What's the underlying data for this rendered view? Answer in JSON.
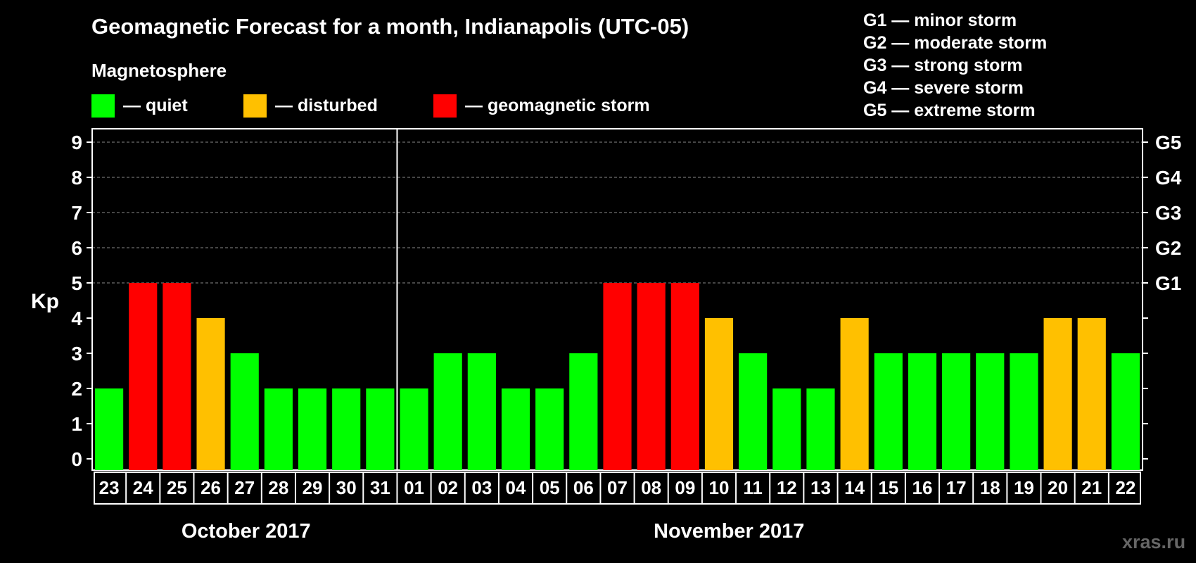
{
  "title": "Geomagnetic Forecast for a month, Indianapolis (UTC-05)",
  "magnetosphere_label": "Magnetosphere",
  "legend": [
    {
      "label": "— quiet",
      "color": "#00ff00"
    },
    {
      "label": "— disturbed",
      "color": "#ffc000"
    },
    {
      "label": "— geomagnetic storm",
      "color": "#ff0000"
    }
  ],
  "g_scale_legend": [
    "G1 — minor storm",
    "G2 — moderate storm",
    "G3 — strong storm",
    "G4 — severe storm",
    "G5 — extreme storm"
  ],
  "watermark": "xras.ru",
  "chart_data": {
    "type": "bar",
    "ylabel": "Kp",
    "ylim": [
      0,
      9
    ],
    "y_ticks": [
      "0",
      "1",
      "2",
      "3",
      "4",
      "5",
      "6",
      "7",
      "8",
      "9"
    ],
    "right_axis_labels": [
      {
        "y": 5,
        "label": "G1"
      },
      {
        "y": 6,
        "label": "G2"
      },
      {
        "y": 7,
        "label": "G3"
      },
      {
        "y": 8,
        "label": "G4"
      },
      {
        "y": 9,
        "label": "G5"
      }
    ],
    "grid": "dashed horizontal lines at 5 to 9",
    "categories": [
      "23",
      "24",
      "25",
      "26",
      "27",
      "28",
      "29",
      "30",
      "31",
      "01",
      "02",
      "03",
      "04",
      "05",
      "06",
      "07",
      "08",
      "09",
      "10",
      "11",
      "12",
      "13",
      "14",
      "15",
      "16",
      "17",
      "18",
      "19",
      "20",
      "21",
      "22"
    ],
    "values": [
      2,
      5,
      5,
      4,
      3,
      2,
      2,
      2,
      2,
      2,
      3,
      3,
      2,
      2,
      3,
      5,
      5,
      5,
      4,
      3,
      2,
      2,
      4,
      3,
      3,
      3,
      3,
      3,
      4,
      4,
      3
    ],
    "status": [
      "quiet",
      "storm",
      "storm",
      "disturbed",
      "quiet",
      "quiet",
      "quiet",
      "quiet",
      "quiet",
      "quiet",
      "quiet",
      "quiet",
      "quiet",
      "quiet",
      "quiet",
      "storm",
      "storm",
      "storm",
      "disturbed",
      "quiet",
      "quiet",
      "quiet",
      "disturbed",
      "quiet",
      "quiet",
      "quiet",
      "quiet",
      "quiet",
      "disturbed",
      "disturbed",
      "quiet"
    ],
    "status_colors": {
      "quiet": "#00ff00",
      "disturbed": "#ffc000",
      "storm": "#ff0000"
    },
    "months": [
      {
        "label": "October 2017",
        "days": 9
      },
      {
        "label": "November 2017",
        "days": 22
      }
    ]
  }
}
